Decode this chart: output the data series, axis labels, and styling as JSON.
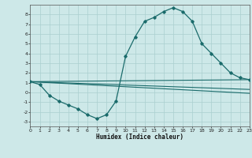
{
  "xlabel": "Humidex (Indice chaleur)",
  "background_color": "#cde8e8",
  "grid_color": "#aacfcf",
  "line_color": "#1a6b6b",
  "x_min": 0,
  "x_max": 23,
  "y_min": -3.5,
  "y_max": 9.0,
  "x_ticks": [
    0,
    1,
    2,
    3,
    4,
    5,
    6,
    7,
    8,
    9,
    10,
    11,
    12,
    13,
    14,
    15,
    16,
    17,
    18,
    19,
    20,
    21,
    22,
    23
  ],
  "y_ticks": [
    -3,
    -2,
    -1,
    0,
    1,
    2,
    3,
    4,
    5,
    6,
    7,
    8
  ],
  "series": [
    {
      "x": [
        0,
        1,
        2,
        3,
        4,
        5,
        6,
        7,
        8,
        9,
        10,
        11,
        12,
        13,
        14,
        15,
        16,
        17,
        18,
        19,
        20,
        21,
        22,
        23
      ],
      "y": [
        1.1,
        0.8,
        -0.3,
        -0.9,
        -1.3,
        -1.7,
        -2.3,
        -2.7,
        -2.3,
        -0.9,
        3.7,
        5.7,
        7.3,
        7.7,
        8.3,
        8.7,
        8.3,
        7.3,
        5.0,
        4.0,
        3.0,
        2.0,
        1.5,
        1.3
      ],
      "style": "line_marker"
    },
    {
      "x": [
        0,
        23
      ],
      "y": [
        1.1,
        1.3
      ],
      "style": "straight_line"
    },
    {
      "x": [
        0,
        23
      ],
      "y": [
        1.1,
        0.3
      ],
      "style": "straight_line"
    },
    {
      "x": [
        0,
        23
      ],
      "y": [
        1.1,
        -0.1
      ],
      "style": "straight_line"
    }
  ]
}
